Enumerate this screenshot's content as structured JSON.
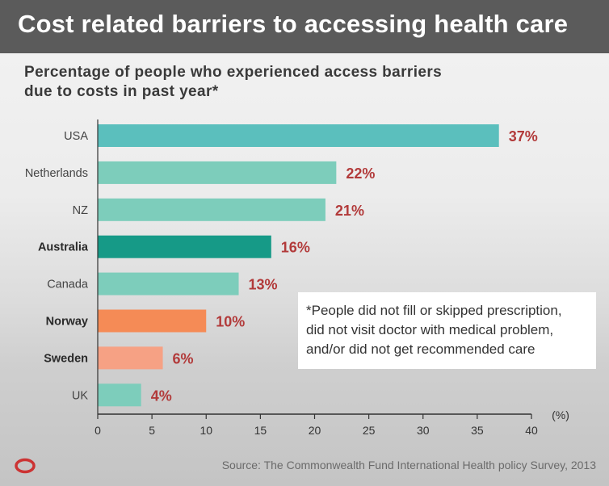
{
  "header": {
    "title": "Cost related barriers to accessing health care"
  },
  "subtitle_lines": [
    "Percentage of people who experienced access barriers",
    "due to costs in past year*"
  ],
  "note_lines": [
    "*People did not fill or skipped prescription,",
    "did not visit doctor with medical problem,",
    "and/or did not get recommended care"
  ],
  "source": "Source: The Commonwealth Fund International Health policy Survey, 2013",
  "logo_icon": "ring-logo-icon",
  "colors": {
    "usa": "#5bbfbd",
    "default": "#7dcdbb",
    "highlight": "#169a87",
    "norway": "#f58b56",
    "sweden": "#f6a184",
    "value_label": "#b23a3a",
    "logo": "#cc3333"
  },
  "chart_data": {
    "type": "bar",
    "orientation": "horizontal",
    "categories": [
      "USA",
      "Netherlands",
      "NZ",
      "Australia",
      "Canada",
      "Norway",
      "Sweden",
      "UK"
    ],
    "values": [
      37,
      22,
      21,
      16,
      13,
      10,
      6,
      4
    ],
    "value_labels": [
      "37%",
      "22%",
      "21%",
      "16%",
      "13%",
      "10%",
      "6%",
      "4%"
    ],
    "bold_categories": [
      "Australia",
      "Norway",
      "Sweden"
    ],
    "bar_colors": [
      "#5bbfbd",
      "#7dcdbb",
      "#7dcdbb",
      "#169a87",
      "#7dcdbb",
      "#f58b56",
      "#f6a184",
      "#7dcdbb"
    ],
    "x_ticks": [
      0,
      5,
      10,
      15,
      20,
      25,
      30,
      35,
      40
    ],
    "x_unit_label": "(%)",
    "xlim": [
      0,
      40
    ],
    "grid": false
  }
}
